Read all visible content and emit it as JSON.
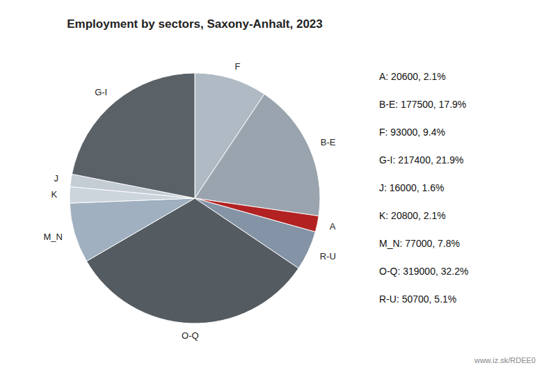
{
  "chart_data": {
    "type": "pie",
    "title": "Employment by sectors, Saxony-Anhalt, 2023",
    "categories": [
      "F",
      "B-E",
      "A",
      "R-U",
      "O-Q",
      "M_N",
      "K",
      "J",
      "G-I"
    ],
    "values": [
      93000,
      177500,
      20600,
      50700,
      319000,
      77000,
      20800,
      16000,
      217400
    ],
    "colors": [
      "#b0bac4",
      "#9aa4ae",
      "#b22222",
      "#8494a6",
      "#545c62",
      "#a0b0c0",
      "#ccd4dc",
      "#c4ccd4",
      "#5a6268"
    ],
    "annotations": [
      "A: 20600, 2.1%",
      "B-E: 177500, 17.9%",
      "F: 93000, 9.4%",
      "G-I: 217400, 21.9%",
      "J: 16000, 1.6%",
      "K: 20800, 2.1%",
      "M_N: 77000, 7.8%",
      "O-Q: 319000, 32.2%",
      "R-U: 50700, 5.1%"
    ],
    "watermark": "www.iz.sk/RDEE0"
  }
}
